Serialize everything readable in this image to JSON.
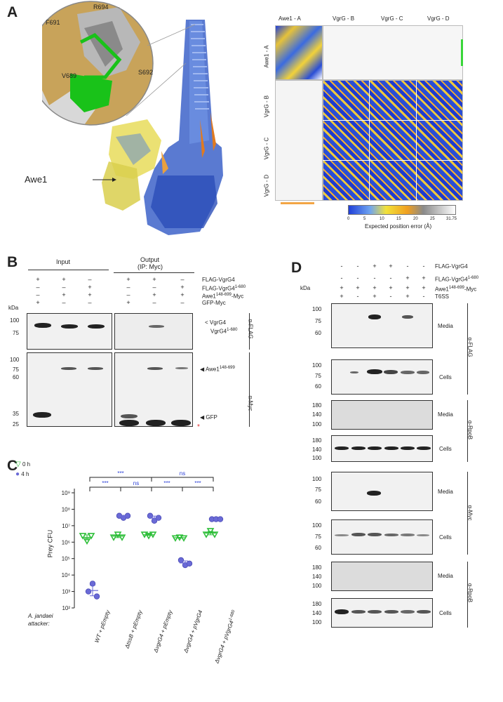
{
  "panels": {
    "a": "A",
    "b": "B",
    "c": "C",
    "d": "D"
  },
  "panelA": {
    "residues": [
      "R694",
      "F691",
      "V689",
      "S692"
    ],
    "awe1_label": "Awe1",
    "pae": {
      "col_labels": [
        "Awe1 - A",
        "VgrG - B",
        "VgrG - C",
        "VgrG - D"
      ],
      "row_labels": [
        "Awe1 - A",
        "VgrG - B",
        "VgrG - C",
        "VgrG - D"
      ],
      "colorbar_ticks": [
        "0",
        "5",
        "10",
        "15",
        "20",
        "25",
        "31.75"
      ],
      "colorbar_label": "Expected position error (Å)",
      "colors": {
        "low": "#1f3fd8",
        "mid": "#f2d23a",
        "high": "#ffffff"
      }
    }
  },
  "panelB": {
    "input_label": "Input",
    "output_label": "Output",
    "output_sub": "(IP: Myc)",
    "row_labels": [
      "FLAG-VgrG4",
      "FLAG-VgrG4",
      "Awe1",
      "GFP-Myc"
    ],
    "row_label_sup": [
      "",
      "1-680",
      "148-699",
      ""
    ],
    "row_label_suffix": [
      "",
      "",
      "-Myc",
      ""
    ],
    "signs": [
      [
        "+",
        "+",
        "–",
        "+",
        "+",
        "–"
      ],
      [
        "–",
        "–",
        "+",
        "–",
        "–",
        "+"
      ],
      [
        "–",
        "+",
        "+",
        "–",
        "+",
        "+"
      ],
      [
        "+",
        "–",
        "–",
        "+",
        "–",
        "–"
      ]
    ],
    "kda_label": "kDa",
    "top_markers": [
      "100",
      "75"
    ],
    "bottom_markers": [
      "100",
      "75",
      "60",
      "35",
      "25"
    ],
    "band_labels": [
      "VgrG4",
      "VgrG4",
      "Awe1",
      "GFP"
    ],
    "band_sups": [
      "",
      "1-680",
      "148-699",
      ""
    ],
    "antibody_top": "α-FLAG",
    "antibody_bottom": "α-Myc",
    "asterisk": "*"
  },
  "panelC": {
    "legend": [
      {
        "label": "0 h",
        "color": "#2fbf3a"
      },
      {
        "label": "4 h",
        "color": "#6a6ad6"
      }
    ],
    "ylabel": "Prey CFU",
    "y_ticks": [
      "10⁹",
      "10⁸",
      "10⁷",
      "10⁶",
      "10⁵",
      "10⁴",
      "10³",
      "10²"
    ],
    "x_prefix": "A. jandaei attacker:",
    "x_labels": [
      "WT + pEmpty",
      "ΔtssB + pEmpty",
      "ΔvgrG4 + pEmpty",
      "ΔvgrG4 + pVgrG4",
      "ΔvgrG4 + pVgrG4"
    ],
    "x_label_sups": [
      "",
      "",
      "",
      "",
      "1-680"
    ],
    "sig": [
      "***",
      "ns",
      "***",
      "ns",
      "***",
      "***"
    ],
    "chart_data": {
      "type": "scatter",
      "ylabel": "Prey CFU",
      "yscale": "log",
      "ylim": [
        100,
        1000000000
      ],
      "categories": [
        "WT + pEmpty",
        "ΔtssB + pEmpty",
        "ΔvgrG4 + pEmpty",
        "ΔvgrG4 + pVgrG4",
        "ΔvgrG4 + pVgrG4 1-680"
      ],
      "series": [
        {
          "name": "0 h",
          "values": [
            [
              2500000,
              1200000,
              2500000
            ],
            [
              2000000,
              3000000,
              2000000
            ],
            [
              3000000,
              2500000,
              3000000
            ],
            [
              1800000,
              2000000,
              1800000
            ],
            [
              3000000,
              5000000,
              3000000
            ]
          ]
        },
        {
          "name": "4 h",
          "values": [
            [
              1000,
              3000,
              500
            ],
            [
              40000000,
              30000000,
              40000000
            ],
            [
              40000000,
              20000000,
              30000000
            ],
            [
              80000,
              40000,
              50000
            ],
            [
              25000000,
              25000000,
              25000000
            ]
          ]
        }
      ]
    }
  },
  "panelD": {
    "row_labels": [
      "FLAG-VgrG4",
      "FLAG-VgrG4",
      "Awe1",
      "T6SS"
    ],
    "row_label_sup": [
      "",
      "1-680",
      "148-699",
      ""
    ],
    "row_label_suffix": [
      "",
      "",
      "-Myc",
      ""
    ],
    "signs": [
      [
        "-",
        "-",
        "+",
        "+",
        "-",
        "-"
      ],
      [
        "-",
        "-",
        "-",
        "-",
        "+",
        "+"
      ],
      [
        "+",
        "+",
        "+",
        "+",
        "+",
        "+"
      ],
      [
        "+",
        "-",
        "+",
        "-",
        "+",
        "-"
      ]
    ],
    "kda_label": "kDa",
    "blots": [
      {
        "label": "Media",
        "markers": [
          "100",
          "75",
          "60"
        ]
      },
      {
        "label": "Cells",
        "markers": [
          "100",
          "75",
          "60"
        ]
      },
      {
        "label": "Media",
        "markers": [
          "180",
          "140",
          "100"
        ]
      },
      {
        "label": "Cells",
        "markers": [
          "180",
          "140",
          "100"
        ]
      },
      {
        "label": "Media",
        "markers": [
          "100",
          "75",
          "60"
        ]
      },
      {
        "label": "Cells",
        "markers": [
          "100",
          "75",
          "60"
        ]
      },
      {
        "label": "Media",
        "markers": [
          "180",
          "140",
          "100"
        ]
      },
      {
        "label": "Cells",
        "markers": [
          "180",
          "140",
          "100"
        ]
      }
    ],
    "antibodies": [
      "α-FLAG",
      "α-RpoB",
      "α-Myc",
      "α-RpoB"
    ]
  }
}
